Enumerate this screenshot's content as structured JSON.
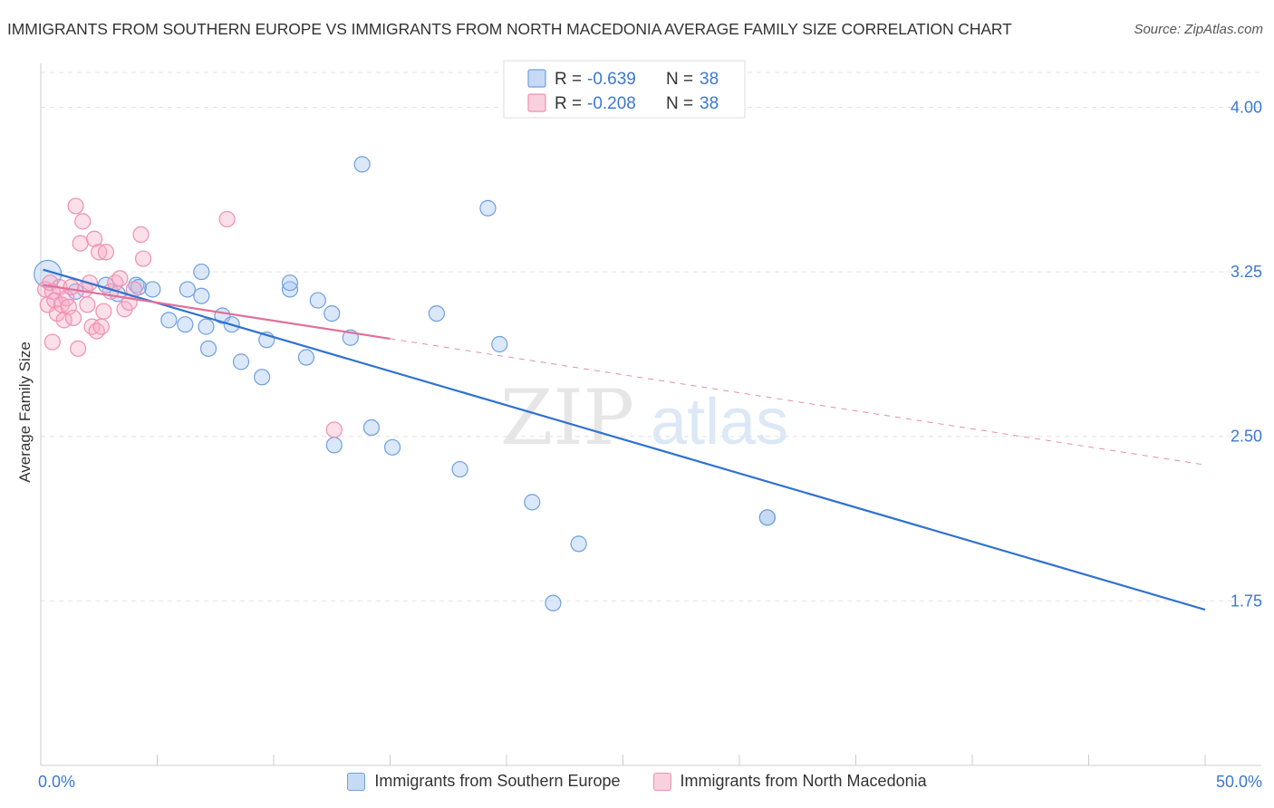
{
  "title": "IMMIGRANTS FROM SOUTHERN EUROPE VS IMMIGRANTS FROM NORTH MACEDONIA AVERAGE FAMILY SIZE CORRELATION CHART",
  "source": "Source: ZipAtlas.com",
  "watermark": {
    "zip": "ZIP",
    "atlas": "atlas"
  },
  "chart_data": {
    "type": "scatter",
    "title": "IMMIGRANTS FROM SOUTHERN EUROPE VS IMMIGRANTS FROM NORTH MACEDONIA AVERAGE FAMILY SIZE CORRELATION CHART",
    "xlabel": "",
    "ylabel": "Average Family Size",
    "xlim": [
      0,
      50
    ],
    "ylim": [
      1.0,
      4.2
    ],
    "x_tick_labels": [
      "0.0%",
      "50.0%"
    ],
    "y_ticks": [
      4.0,
      3.25,
      2.5,
      1.75
    ],
    "y_tick_labels": [
      "4.00",
      "3.25",
      "2.50",
      "1.75"
    ],
    "grid": true,
    "legend_position": "top-center",
    "colors": {
      "southern_europe": "#6f9fe0",
      "southern_europe_line": "#2f72cf",
      "north_macedonia": "#f08fb0",
      "north_macedonia_line": "#e0709a",
      "tick_label": "#3b78d0"
    },
    "stats": [
      {
        "swatch": "southern_europe",
        "r_label": "R = ",
        "r_value": "-0.639",
        "n_label": "N = ",
        "n_value": "38"
      },
      {
        "swatch": "north_macedonia",
        "r_label": "R = ",
        "r_value": "-0.208",
        "n_label": "N = ",
        "n_value": "38"
      }
    ],
    "series": [
      {
        "name": "Immigrants from Southern Europe",
        "key": "southern_europe",
        "trend": {
          "x0": 0.1,
          "y0": 3.26,
          "x1": 50.0,
          "y1": 1.71,
          "solid_to": 50.0
        },
        "points": [
          [
            0.3,
            3.24,
            1
          ],
          [
            1.5,
            3.16,
            0
          ],
          [
            2.8,
            3.19,
            0
          ],
          [
            3.3,
            3.15,
            0
          ],
          [
            4.1,
            3.19,
            0
          ],
          [
            4.2,
            3.18,
            0
          ],
          [
            4.8,
            3.17,
            0
          ],
          [
            5.5,
            3.03,
            0
          ],
          [
            6.3,
            3.17,
            0
          ],
          [
            6.9,
            3.25,
            0
          ],
          [
            7.1,
            3.0,
            0
          ],
          [
            6.2,
            3.01,
            0
          ],
          [
            6.9,
            3.14,
            0
          ],
          [
            7.2,
            2.9,
            0
          ],
          [
            7.8,
            3.05,
            0
          ],
          [
            8.2,
            3.01,
            0
          ],
          [
            8.6,
            2.84,
            0
          ],
          [
            9.5,
            2.77,
            0
          ],
          [
            9.7,
            2.94,
            0
          ],
          [
            10.7,
            3.17,
            0
          ],
          [
            10.7,
            3.2,
            0
          ],
          [
            11.4,
            2.86,
            0
          ],
          [
            11.9,
            3.12,
            0
          ],
          [
            12.5,
            3.06,
            0
          ],
          [
            12.6,
            2.46,
            0
          ],
          [
            13.3,
            2.95,
            0
          ],
          [
            13.8,
            3.74,
            0
          ],
          [
            14.2,
            2.54,
            0
          ],
          [
            15.1,
            2.45,
            0
          ],
          [
            17.0,
            3.06,
            0
          ],
          [
            18.0,
            2.35,
            0
          ],
          [
            19.2,
            3.54,
            0
          ],
          [
            19.7,
            2.92,
            0
          ],
          [
            21.1,
            2.2,
            0
          ],
          [
            22.0,
            1.74,
            0
          ],
          [
            23.1,
            2.01,
            0
          ],
          [
            31.2,
            2.13,
            0
          ],
          [
            31.2,
            2.13,
            0
          ]
        ]
      },
      {
        "name": "Immigrants from North Macedonia",
        "key": "north_macedonia",
        "trend": {
          "x0": 0.1,
          "y0": 3.19,
          "x1": 50.0,
          "y1": 2.37,
          "solid_to": 15.0
        },
        "points": [
          [
            0.2,
            3.17,
            0
          ],
          [
            0.3,
            3.1,
            0
          ],
          [
            0.4,
            3.2,
            0
          ],
          [
            0.5,
            3.16,
            0
          ],
          [
            0.6,
            3.12,
            0
          ],
          [
            0.7,
            3.06,
            0
          ],
          [
            0.8,
            3.18,
            0
          ],
          [
            0.9,
            3.1,
            0
          ],
          [
            1.0,
            3.03,
            0
          ],
          [
            1.1,
            3.13,
            0
          ],
          [
            1.2,
            3.09,
            0
          ],
          [
            1.3,
            3.18,
            0
          ],
          [
            1.4,
            3.04,
            0
          ],
          [
            1.5,
            3.55,
            0
          ],
          [
            1.6,
            2.9,
            0
          ],
          [
            1.7,
            3.38,
            0
          ],
          [
            1.8,
            3.48,
            0
          ],
          [
            1.9,
            3.17,
            0
          ],
          [
            2.0,
            3.1,
            0
          ],
          [
            2.1,
            3.2,
            0
          ],
          [
            2.2,
            3.0,
            0
          ],
          [
            2.3,
            3.4,
            0
          ],
          [
            2.4,
            2.98,
            0
          ],
          [
            2.5,
            3.34,
            0
          ],
          [
            2.6,
            3.0,
            0
          ],
          [
            2.7,
            3.07,
            0
          ],
          [
            2.8,
            3.34,
            0
          ],
          [
            3.0,
            3.16,
            0
          ],
          [
            3.2,
            3.2,
            0
          ],
          [
            3.4,
            3.22,
            0
          ],
          [
            3.6,
            3.08,
            0
          ],
          [
            3.8,
            3.11,
            0
          ],
          [
            4.0,
            3.17,
            0
          ],
          [
            4.3,
            3.42,
            0
          ],
          [
            4.4,
            3.31,
            0
          ],
          [
            8.0,
            3.49,
            0
          ],
          [
            12.6,
            2.53,
            0
          ],
          [
            0.5,
            2.93,
            0
          ]
        ]
      }
    ]
  },
  "legend": [
    {
      "label": "Immigrants from Southern Europe",
      "key": "southern_europe"
    },
    {
      "label": "Immigrants from North Macedonia",
      "key": "north_macedonia"
    }
  ]
}
